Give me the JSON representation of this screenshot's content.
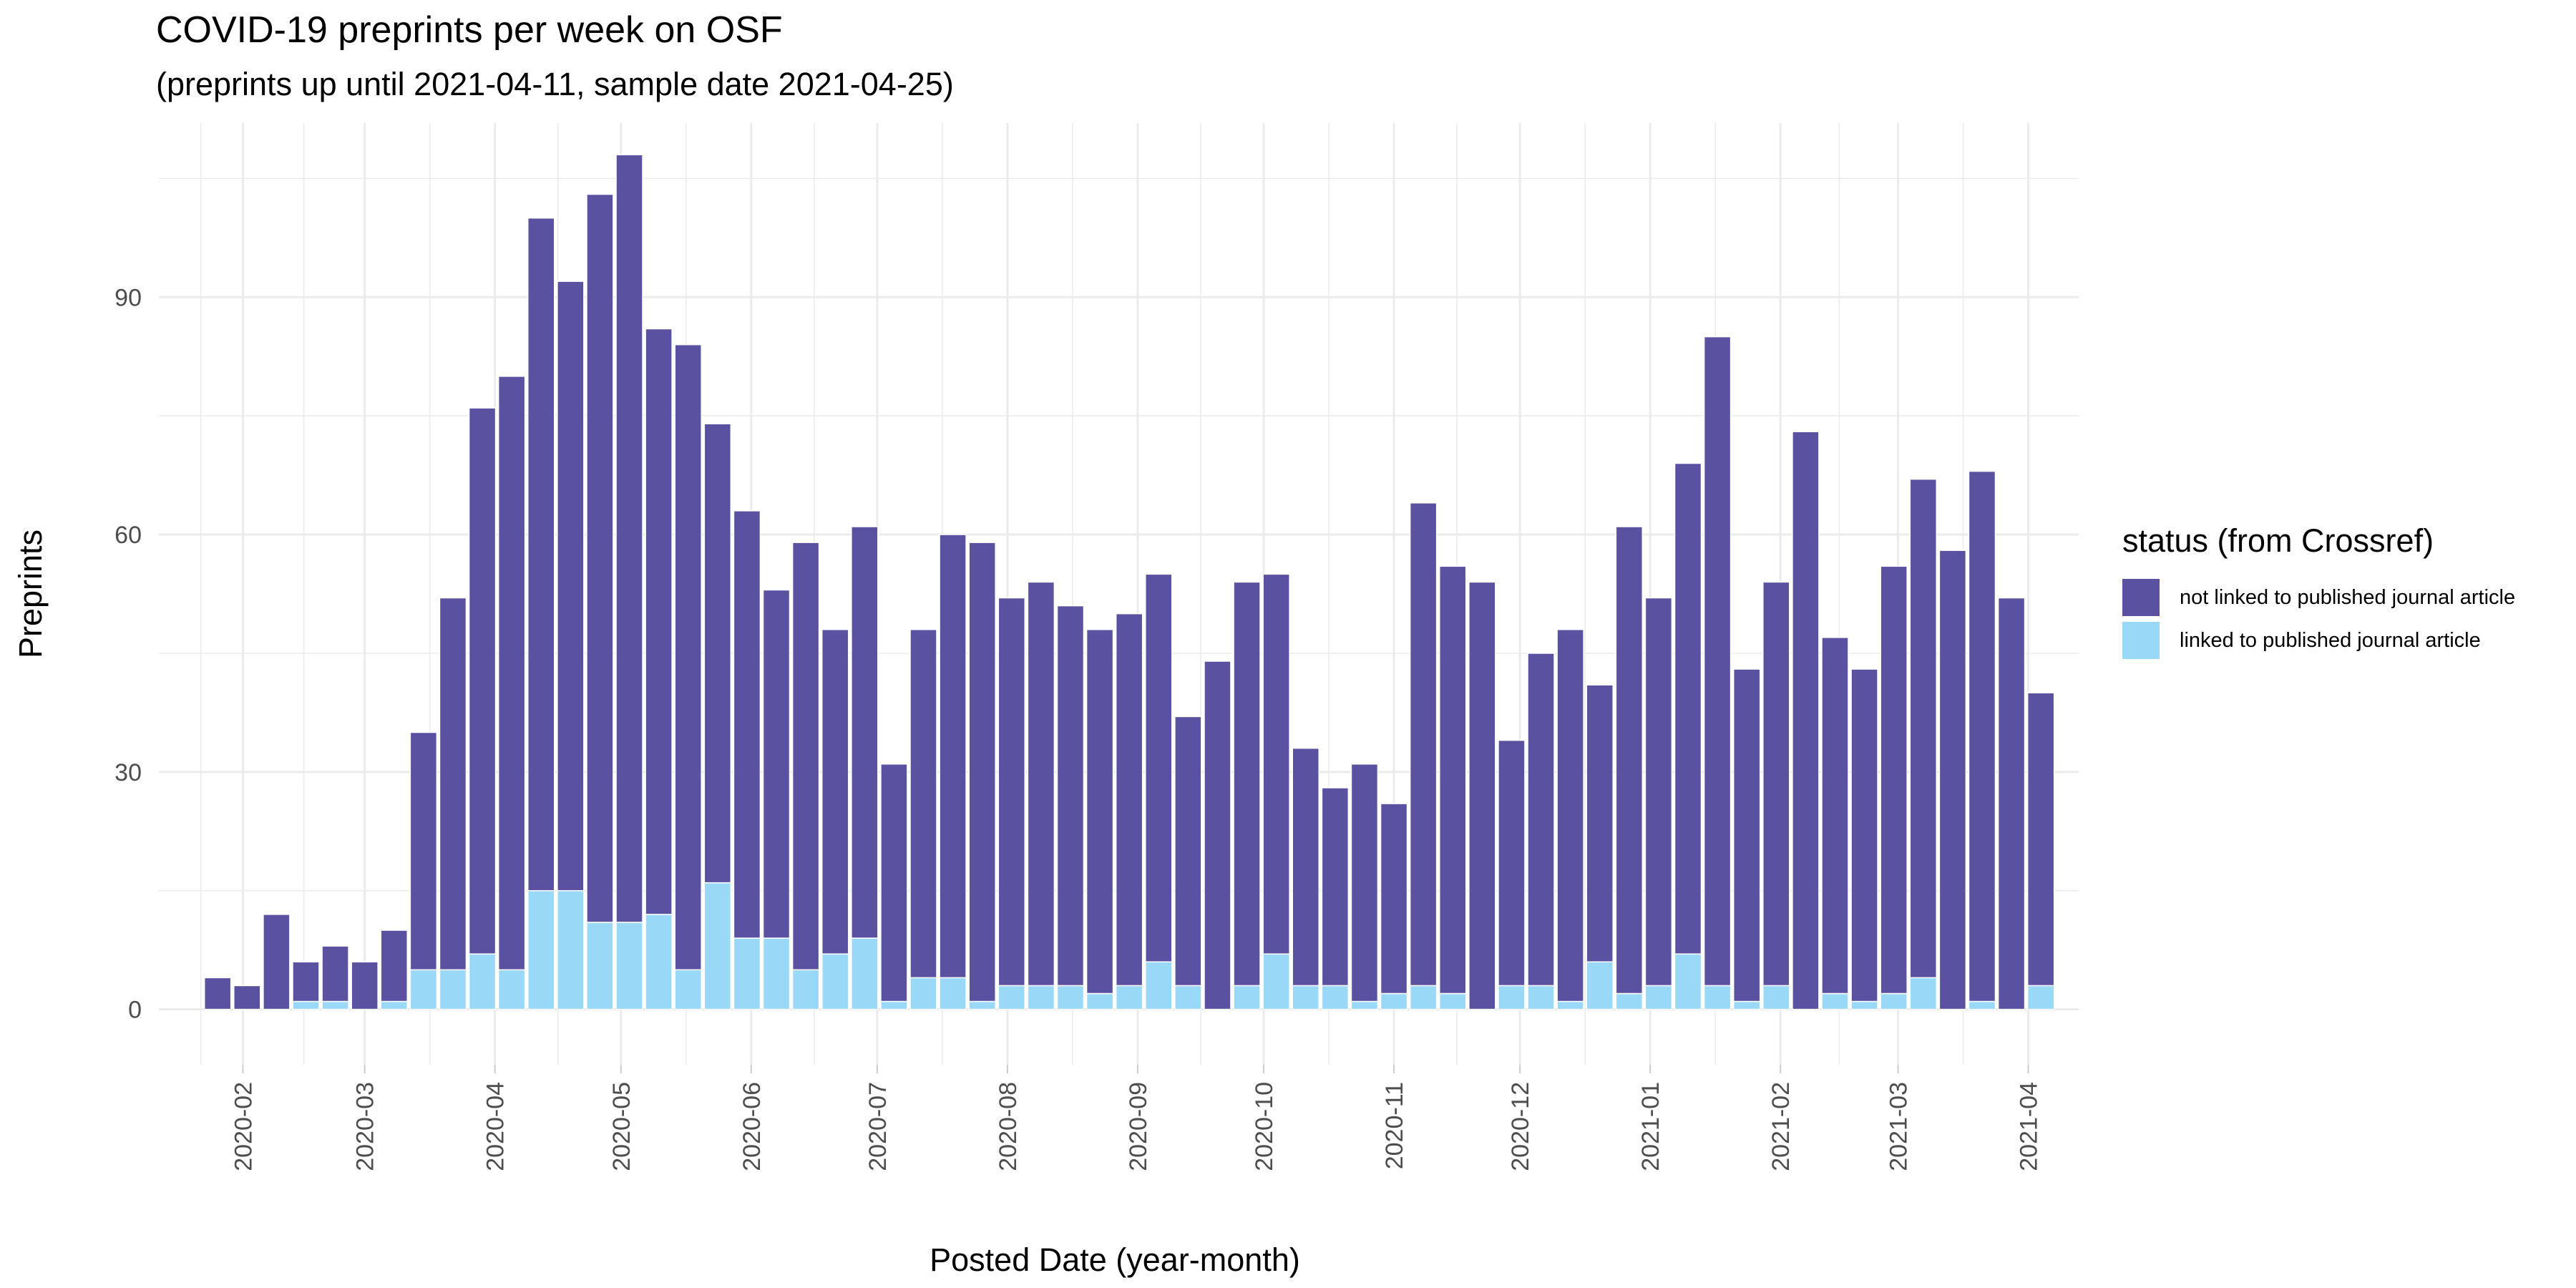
{
  "chart_data": {
    "type": "bar",
    "stacked": true,
    "title": "COVID-19 preprints per week on OSF",
    "subtitle": "(preprints up until 2021-04-11, sample date 2021-04-25)",
    "xlabel": "Posted Date (year-month)",
    "ylabel": "Preprints",
    "ylim": [
      -7,
      112
    ],
    "yticks": [
      0,
      30,
      60,
      90
    ],
    "xlim": [
      "2020-01-12",
      "2021-04-13"
    ],
    "xticks": [
      "2020-02-01",
      "2020-03-01",
      "2020-04-01",
      "2020-05-01",
      "2020-06-01",
      "2020-07-01",
      "2020-08-01",
      "2020-09-01",
      "2020-10-01",
      "2020-11-01",
      "2020-12-01",
      "2021-01-01",
      "2021-02-01",
      "2021-03-01",
      "2021-04-01"
    ],
    "xtick_labels": [
      "2020-02",
      "2020-03",
      "2020-04",
      "2020-05",
      "2020-06",
      "2020-07",
      "2020-08",
      "2020-09",
      "2020-10",
      "2020-11",
      "2020-12",
      "2021-01",
      "2021-02",
      "2021-03",
      "2021-04"
    ],
    "grid": true,
    "legend": {
      "title": "status (from Crossref)",
      "placement": "right",
      "entries": [
        {
          "label": "not linked to published journal article",
          "color": "#5a51a0"
        },
        {
          "label": "linked to published journal article",
          "color": "#99d8f7"
        }
      ]
    },
    "x": [
      "2020-01-26",
      "2020-02-02",
      "2020-02-09",
      "2020-02-16",
      "2020-02-23",
      "2020-03-01",
      "2020-03-08",
      "2020-03-15",
      "2020-03-22",
      "2020-03-29",
      "2020-04-05",
      "2020-04-12",
      "2020-04-19",
      "2020-04-26",
      "2020-05-03",
      "2020-05-10",
      "2020-05-17",
      "2020-05-24",
      "2020-05-31",
      "2020-06-07",
      "2020-06-14",
      "2020-06-21",
      "2020-06-28",
      "2020-07-05",
      "2020-07-12",
      "2020-07-19",
      "2020-07-26",
      "2020-08-02",
      "2020-08-09",
      "2020-08-16",
      "2020-08-23",
      "2020-08-30",
      "2020-09-06",
      "2020-09-13",
      "2020-09-20",
      "2020-09-27",
      "2020-10-04",
      "2020-10-11",
      "2020-10-18",
      "2020-10-25",
      "2020-11-01",
      "2020-11-08",
      "2020-11-15",
      "2020-11-22",
      "2020-11-29",
      "2020-12-06",
      "2020-12-13",
      "2020-12-20",
      "2020-12-27",
      "2021-01-03",
      "2021-01-10",
      "2021-01-17",
      "2021-01-24",
      "2021-01-31",
      "2021-02-07",
      "2021-02-14",
      "2021-02-21",
      "2021-02-28",
      "2021-03-07",
      "2021-03-14",
      "2021-03-21",
      "2021-03-28",
      "2021-04-04",
      "2021-04-11"
    ],
    "series": [
      {
        "name": "linked to published journal article",
        "color": "#99d8f7",
        "values": [
          0,
          0,
          0,
          1,
          1,
          0,
          1,
          5,
          5,
          7,
          5,
          15,
          15,
          11,
          11,
          12,
          5,
          16,
          9,
          9,
          5,
          7,
          9,
          1,
          4,
          4,
          1,
          3,
          3,
          3,
          2,
          3,
          6,
          3,
          0,
          3,
          7,
          3,
          3,
          1,
          2,
          3,
          2,
          0,
          3,
          3,
          1,
          6,
          2,
          3,
          7,
          3,
          1,
          3,
          0,
          2,
          1,
          2,
          4,
          0,
          1,
          0,
          3,
          0
        ]
      },
      {
        "name": "not linked to published journal article",
        "color": "#5a51a0",
        "values": [
          4,
          3,
          12,
          5,
          7,
          6,
          9,
          30,
          47,
          69,
          75,
          85,
          77,
          92,
          97,
          74,
          79,
          58,
          54,
          44,
          54,
          41,
          52,
          30,
          44,
          56,
          58,
          49,
          51,
          48,
          46,
          47,
          49,
          34,
          44,
          51,
          48,
          30,
          25,
          30,
          24,
          61,
          54,
          54,
          31,
          42,
          47,
          35,
          59,
          49,
          62,
          82,
          42,
          51,
          73,
          45,
          42,
          54,
          63,
          58,
          67,
          52,
          37,
          0
        ]
      }
    ]
  }
}
